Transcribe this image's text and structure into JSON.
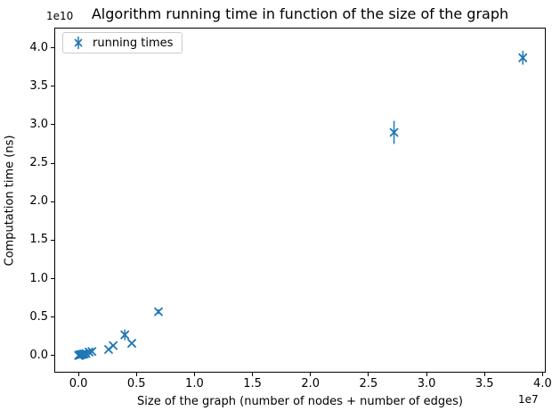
{
  "chart_data": {
    "type": "scatter",
    "title": "Algorithm running time in function of the size of the graph",
    "xlabel": "Size of the graph (number of nodes + number of edges)",
    "ylabel": "Computation time (ns)",
    "x_offset_label": "1e7",
    "y_offset_label": "1e10",
    "x_unit_multiplier": 10000000,
    "y_unit_multiplier": 10000000000,
    "marker": "x",
    "marker_color": "#1f77b4",
    "grid": false,
    "legend": {
      "position": "upper left",
      "entries": [
        {
          "label": "running times",
          "marker": "errorbar-x",
          "color": "#1f77b4"
        }
      ]
    },
    "xlim": [
      -0.2,
      4.02
    ],
    "ylim": [
      -0.21,
      4.25
    ],
    "x_ticks": [
      0.0,
      0.5,
      1.0,
      1.5,
      2.0,
      2.5,
      3.0,
      3.5,
      4.0
    ],
    "y_ticks": [
      0.0,
      0.5,
      1.0,
      1.5,
      2.0,
      2.5,
      3.0,
      3.5,
      4.0
    ],
    "points_units_note": "x in 1e7 (nodes+edges), y in 1e10 ns, yerr in 1e10 ns",
    "points": [
      {
        "x": 0.002,
        "y": 0.002,
        "yerr": 0
      },
      {
        "x": 0.005,
        "y": 0.003,
        "yerr": 0
      },
      {
        "x": 0.009,
        "y": 0.005,
        "yerr": 0
      },
      {
        "x": 0.014,
        "y": 0.008,
        "yerr": 0
      },
      {
        "x": 0.02,
        "y": 0.011,
        "yerr": 0
      },
      {
        "x": 0.028,
        "y": 0.014,
        "yerr": 0
      },
      {
        "x": 0.038,
        "y": 0.018,
        "yerr": 0
      },
      {
        "x": 0.05,
        "y": 0.022,
        "yerr": 0
      },
      {
        "x": 0.066,
        "y": 0.027,
        "yerr": 0
      },
      {
        "x": 0.092,
        "y": 0.047,
        "yerr": 0
      },
      {
        "x": 0.117,
        "y": 0.054,
        "yerr": 0
      },
      {
        "x": 0.26,
        "y": 0.08,
        "yerr": 0
      },
      {
        "x": 0.3,
        "y": 0.13,
        "yerr": 0
      },
      {
        "x": 0.4,
        "y": 0.27,
        "yerr": 0.07
      },
      {
        "x": 0.46,
        "y": 0.16,
        "yerr": 0
      },
      {
        "x": 0.69,
        "y": 0.57,
        "yerr": 0.03
      },
      {
        "x": 2.72,
        "y": 2.9,
        "yerr": 0.15
      },
      {
        "x": 3.83,
        "y": 3.87,
        "yerr": 0.09
      }
    ]
  }
}
